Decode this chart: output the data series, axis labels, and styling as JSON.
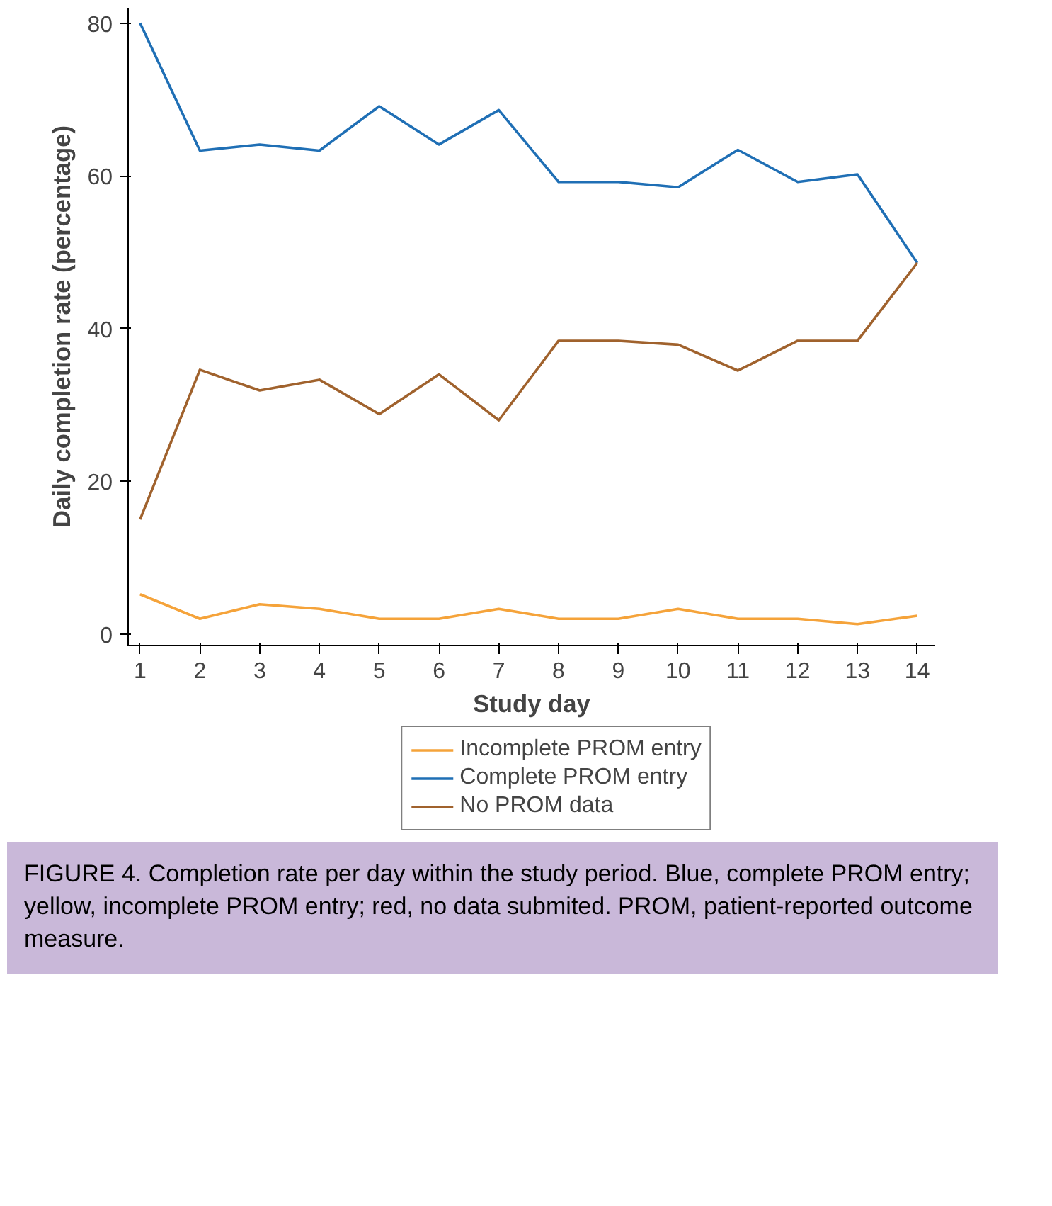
{
  "chart_data": {
    "type": "line",
    "xlabel": "Study day",
    "ylabel": "Daily completion rate (percentage)",
    "x": [
      1,
      2,
      3,
      4,
      5,
      6,
      7,
      8,
      9,
      10,
      11,
      12,
      13,
      14
    ],
    "series": [
      {
        "name": "Incomplete PROM entry",
        "color": "#f5a33a",
        "values": [
          5.2,
          2.0,
          3.9,
          3.3,
          2.0,
          2.0,
          3.3,
          2.0,
          2.0,
          3.3,
          2.0,
          2.0,
          1.3,
          2.4
        ]
      },
      {
        "name": "Complete PROM entry",
        "color": "#1f6fb5",
        "values": [
          80,
          63.3,
          64.1,
          63.3,
          69.1,
          64.1,
          68.6,
          59.2,
          59.2,
          58.5,
          63.4,
          59.2,
          60.2,
          48.6
        ]
      },
      {
        "name": "No PROM data",
        "color": "#a0622d",
        "values": [
          15.0,
          34.6,
          31.9,
          33.3,
          28.8,
          34.0,
          28.0,
          38.4,
          38.4,
          37.9,
          34.5,
          38.4,
          38.4,
          48.6
        ]
      }
    ],
    "xlim": [
      0.8,
      14.3
    ],
    "ylim": [
      -1.5,
      82
    ],
    "xticks": [
      1,
      2,
      3,
      4,
      5,
      6,
      7,
      8,
      9,
      10,
      11,
      12,
      13,
      14
    ],
    "yticks": [
      0,
      20,
      40,
      60,
      80
    ],
    "grid": false,
    "legend": "bottom",
    "marker": "none",
    "line_style": "solid",
    "annotations": [
      "FIGURE 4. Completion rate per day within the study period. Blue, complete PROM entry; yellow, incomplete PROM entry; red, no data submited. PROM, patient-reported outcome measure."
    ]
  }
}
